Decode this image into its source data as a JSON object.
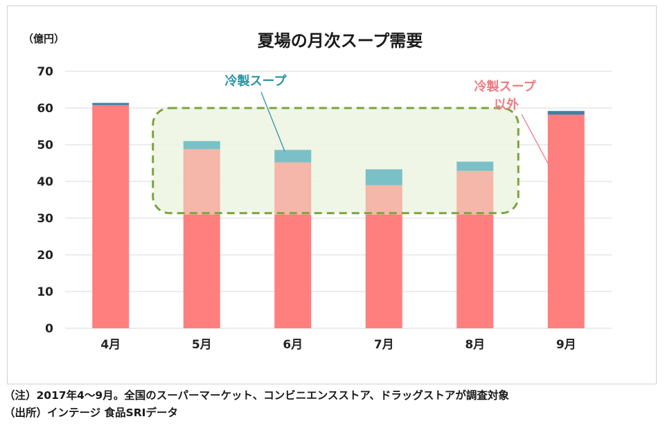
{
  "chart_data": {
    "type": "bar",
    "stacked": true,
    "title": "夏場の月次スープ需要",
    "ylabel": "（億円）",
    "ylim": [
      0,
      70
    ],
    "yticks": [
      0,
      10,
      20,
      30,
      40,
      50,
      60,
      70
    ],
    "grid": true,
    "categories": [
      "4月",
      "5月",
      "6月",
      "7月",
      "8月",
      "9月"
    ],
    "series": [
      {
        "name": "冷製スープ以外",
        "values": [
          60.8,
          48.8,
          45.2,
          39.0,
          42.9,
          58.2
        ]
      },
      {
        "name": "冷製スープ",
        "values": [
          0.6,
          2.2,
          3.4,
          4.3,
          2.5,
          1.0
        ]
      }
    ],
    "annotations": {
      "cold_soup_label": "冷製スープ",
      "other_label_line1": "冷製スープ",
      "other_label_line2": "以外"
    },
    "highlight_range": {
      "categories": [
        "5月",
        "6月",
        "7月",
        "8月"
      ],
      "from_value": 31,
      "to_value": 60
    },
    "colors": {
      "other": "#ff7f7f",
      "other_highlight": "#f4b7a9",
      "cold": "#7ac1c7",
      "cold_plain": "#3f7fa3",
      "highlight_fill": "#ecf4e2",
      "highlight_border": "#7aa33d",
      "cold_label": "#2a93a6",
      "other_label": "#f07a80",
      "grid": "#d9d9d9",
      "axis_text": "#222222"
    }
  },
  "footnotes": {
    "note": "（注）2017年4～9月。全国のスーパーマーケット、コンビニエンスストア、ドラッグストアが調査対象",
    "source": "（出所）インテージ 食品SRIデータ"
  }
}
